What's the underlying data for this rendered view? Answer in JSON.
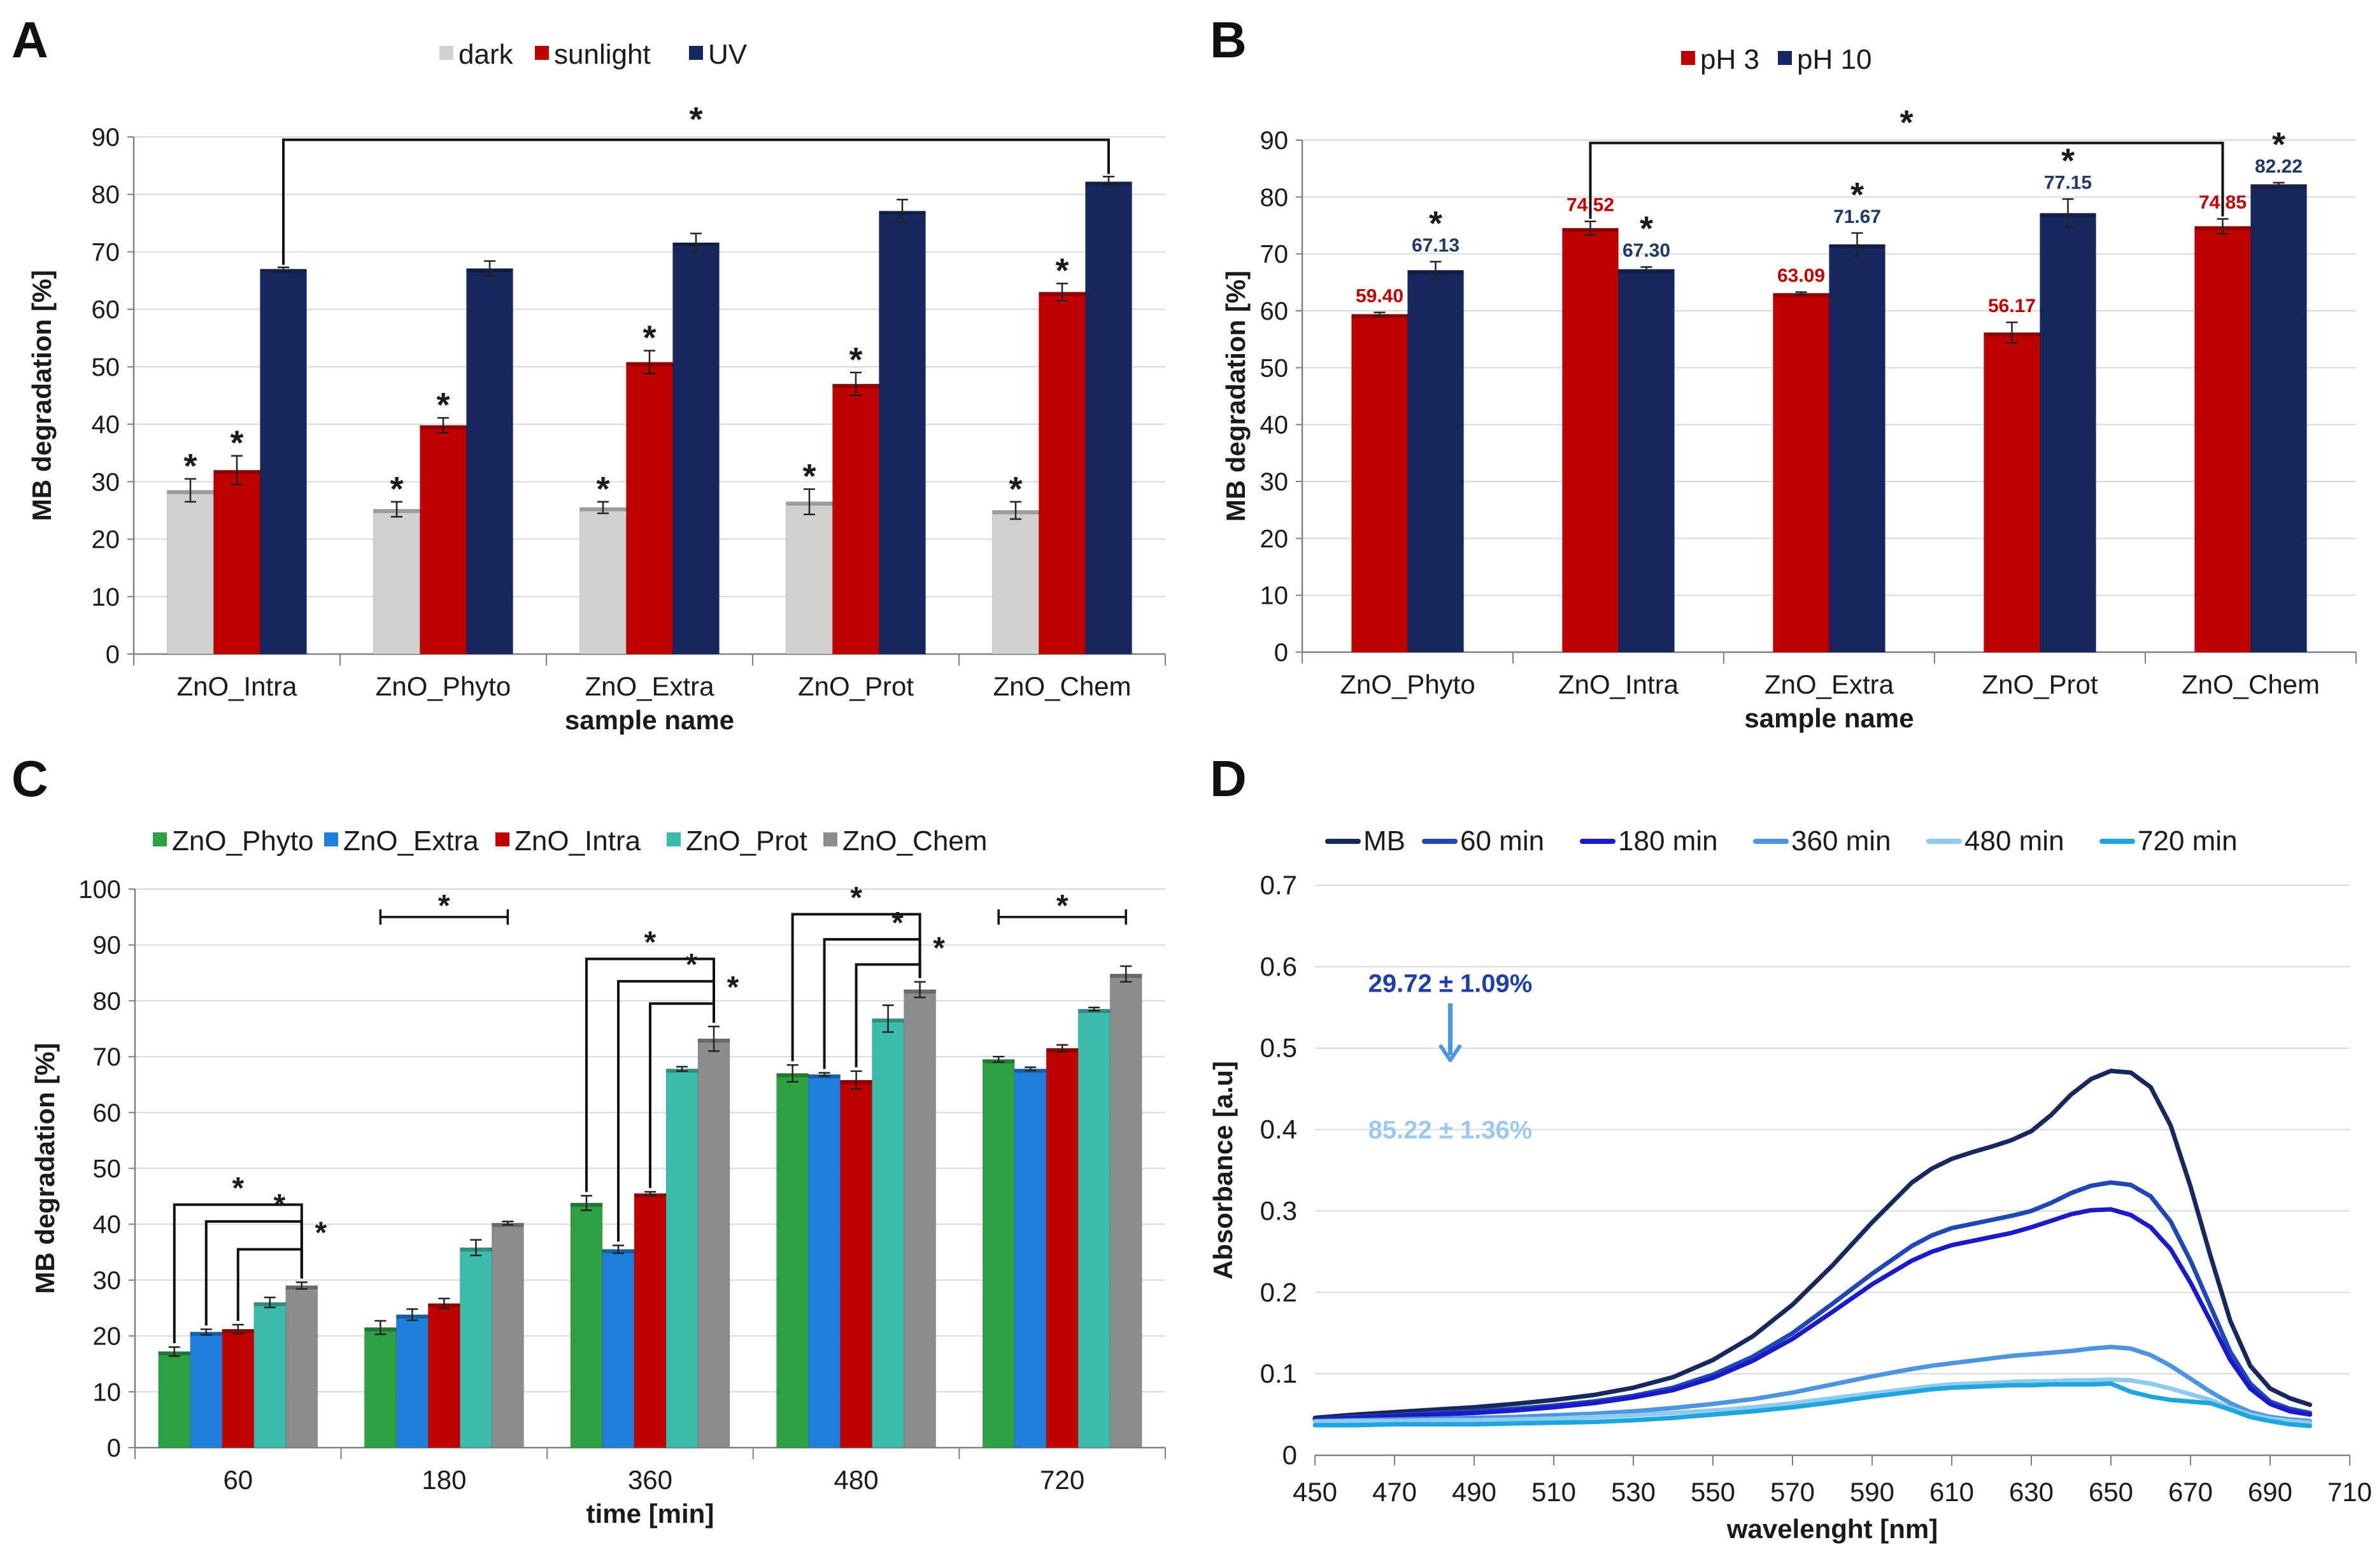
{
  "figure": {
    "colors": {
      "dark": "#d0d0d0",
      "sunlight": "#c00000",
      "UV": "#17285e",
      "pH3": "#c00000",
      "pH10": "#17285e",
      "ZnO_Phyto": "#2ea043",
      "ZnO_Extra": "#1f7fdc",
      "ZnO_Intra": "#c00000",
      "ZnO_Prot": "#3cbcaa",
      "ZnO_Chem": "#8c8c8c",
      "MB": "#17285e",
      "60 min": "#1f48b5",
      "180 min": "#1a1ac8",
      "360 min": "#4d95dd",
      "480 min": "#8ecbee",
      "720 min": "#1ea5dd",
      "label_pH3": "#c00000",
      "label_pH10": "#1f3864",
      "anno_start": "#1f3fa6",
      "anno_end": "#9cc9ee",
      "arrow": "#4d95dd"
    }
  },
  "chart_data": [
    {
      "panel": "A",
      "type": "bar",
      "title": "",
      "xlabel": "sample name",
      "ylabel": "MB degradation [%]",
      "ylim": [
        0,
        90
      ],
      "yticks": [
        "0",
        "10",
        "20",
        "30",
        "40",
        "50",
        "60",
        "70",
        "80",
        "90"
      ],
      "categories": [
        "ZnO_Intra",
        "ZnO_Phyto",
        "ZnO_Extra",
        "ZnO_Prot",
        "ZnO_Chem"
      ],
      "series": [
        {
          "name": "dark",
          "values": [
            28.5,
            25.2,
            25.5,
            26.5,
            25.0
          ],
          "errors": [
            2.0,
            1.3,
            1.0,
            2.2,
            1.5
          ]
        },
        {
          "name": "sunlight",
          "values": [
            32.0,
            39.8,
            50.8,
            47.0,
            63.0
          ],
          "errors": [
            2.5,
            1.3,
            2.0,
            2.0,
            1.5
          ]
        },
        {
          "name": "UV",
          "values": [
            67.0,
            67.1,
            71.6,
            77.1,
            82.2
          ],
          "errors": [
            0.3,
            1.3,
            1.6,
            2.0,
            0.9
          ]
        }
      ],
      "stars": [
        [
          1,
          1,
          0
        ],
        [
          1,
          1,
          0
        ],
        [
          1,
          1,
          0
        ],
        [
          1,
          1,
          0
        ],
        [
          1,
          1,
          0
        ]
      ],
      "star_symbol": "*",
      "bracket": {
        "label": "*",
        "from_category": "ZnO_Intra",
        "to_category": "ZnO_Chem",
        "series": "UV",
        "y": 89.5
      }
    },
    {
      "panel": "B",
      "type": "bar",
      "title": "",
      "xlabel": "sample name",
      "ylabel": "MB degradation [%]",
      "ylim": [
        0,
        90
      ],
      "yticks": [
        "0",
        "10",
        "20",
        "30",
        "40",
        "50",
        "60",
        "70",
        "80",
        "90"
      ],
      "categories": [
        "ZnO_Phyto",
        "ZnO_Intra",
        "ZnO_Extra",
        "ZnO_Prot",
        "ZnO_Chem"
      ],
      "series": [
        {
          "name": "pH 3",
          "values": [
            59.4,
            74.52,
            63.09,
            56.17,
            74.85
          ],
          "errors": [
            0.3,
            1.2,
            0.2,
            1.8,
            1.3
          ],
          "labels": [
            "59.40",
            "74.52",
            "63.09",
            "56.17",
            "74.85"
          ]
        },
        {
          "name": "pH 10",
          "values": [
            67.13,
            67.3,
            71.67,
            77.15,
            82.22
          ],
          "errors": [
            1.5,
            0.4,
            2.0,
            2.5,
            0.3
          ],
          "labels": [
            "67.13",
            "67.30",
            "71.67",
            "77.15",
            "82.22"
          ]
        }
      ],
      "stars": [
        [
          0,
          1
        ],
        [
          0,
          1
        ],
        [
          0,
          1
        ],
        [
          0,
          1
        ],
        [
          0,
          1
        ]
      ],
      "star_symbol": "*",
      "bracket": {
        "label": "*",
        "from_category": "ZnO_Intra",
        "to_category": "ZnO_Chem",
        "series": "pH 3",
        "y": 89.5
      }
    },
    {
      "panel": "C",
      "type": "bar",
      "title": "",
      "xlabel": "time [min]",
      "ylabel": "MB degradation [%]",
      "ylim": [
        0,
        100
      ],
      "yticks": [
        "0",
        "10",
        "20",
        "30",
        "40",
        "50",
        "60",
        "70",
        "80",
        "90",
        "100"
      ],
      "categories": [
        "60",
        "180",
        "360",
        "480",
        "720"
      ],
      "series": [
        {
          "name": "ZnO_Phyto",
          "values": [
            17.2,
            21.5,
            43.8,
            67.0,
            69.5
          ],
          "errors": [
            0.8,
            1.2,
            1.3,
            1.5,
            0.5
          ]
        },
        {
          "name": "ZnO_Extra",
          "values": [
            20.7,
            23.8,
            35.5,
            66.8,
            67.8
          ],
          "errors": [
            0.5,
            1.0,
            0.7,
            0.3,
            0.3
          ]
        },
        {
          "name": "ZnO_Intra",
          "values": [
            21.2,
            25.8,
            45.5,
            65.8,
            71.5
          ],
          "errors": [
            0.8,
            0.9,
            0.3,
            1.6,
            0.6
          ]
        },
        {
          "name": "ZnO_Prot",
          "values": [
            26.0,
            35.8,
            67.8,
            76.8,
            78.5
          ],
          "errors": [
            0.9,
            1.4,
            0.4,
            2.4,
            0.3
          ]
        },
        {
          "name": "ZnO_Chem",
          "values": [
            29.0,
            40.2,
            73.2,
            82.0,
            84.8
          ],
          "errors": [
            0.6,
            0.3,
            2.2,
            1.4,
            1.4
          ]
        }
      ],
      "significance": [
        {
          "label": "*",
          "type": "cascade",
          "category": "60",
          "ys": [
            43.5,
            40.5,
            35.5
          ]
        },
        {
          "label": "*",
          "type": "span",
          "from_category": "180",
          "from_series": "ZnO_Phyto",
          "to_category": "180",
          "to_series": "ZnO_Chem",
          "y": 95
        }
      ],
      "significance_cascades": [
        {
          "label": "*",
          "category": "360",
          "ys": [
            87.5,
            83.5,
            79.5
          ]
        },
        {
          "label": "*",
          "category": "480",
          "ys": [
            95.5,
            91.0,
            86.5
          ]
        }
      ],
      "significance_span_720": {
        "label": "*",
        "category": "720",
        "y": 95
      }
    },
    {
      "panel": "D",
      "type": "line",
      "title": "",
      "xlabel": "wavelenght [nm]",
      "ylabel": "Absorbance [a.u]",
      "xlim": [
        450,
        710
      ],
      "ylim": [
        0,
        0.7
      ],
      "xticks": [
        "450",
        "470",
        "490",
        "510",
        "530",
        "550",
        "570",
        "590",
        "610",
        "630",
        "650",
        "670",
        "690",
        "710"
      ],
      "yticks": [
        "0",
        "0.1",
        "0.2",
        "0.3",
        "0.4",
        "0.5",
        "0.6",
        "0.7"
      ],
      "x": [
        450,
        460,
        470,
        480,
        490,
        500,
        510,
        520,
        530,
        540,
        550,
        560,
        570,
        580,
        590,
        600,
        605,
        610,
        615,
        620,
        625,
        630,
        635,
        640,
        645,
        650,
        655,
        660,
        665,
        670,
        675,
        680,
        685,
        690,
        695,
        700
      ],
      "series": [
        {
          "name": "MB",
          "values": [
            0.046,
            0.05,
            0.053,
            0.056,
            0.059,
            0.063,
            0.068,
            0.074,
            0.083,
            0.096,
            0.117,
            0.146,
            0.185,
            0.233,
            0.286,
            0.335,
            0.352,
            0.364,
            0.372,
            0.379,
            0.387,
            0.398,
            0.418,
            0.443,
            0.462,
            0.472,
            0.47,
            0.452,
            0.405,
            0.33,
            0.245,
            0.165,
            0.11,
            0.082,
            0.07,
            0.062
          ]
        },
        {
          "name": "60 min",
          "values": [
            0.044,
            0.047,
            0.049,
            0.052,
            0.054,
            0.057,
            0.061,
            0.066,
            0.073,
            0.083,
            0.099,
            0.121,
            0.15,
            0.186,
            0.223,
            0.257,
            0.27,
            0.279,
            0.284,
            0.289,
            0.294,
            0.3,
            0.31,
            0.322,
            0.331,
            0.335,
            0.332,
            0.318,
            0.287,
            0.239,
            0.183,
            0.127,
            0.088,
            0.066,
            0.057,
            0.052
          ]
        },
        {
          "name": "180 min",
          "values": [
            0.044,
            0.046,
            0.048,
            0.05,
            0.052,
            0.055,
            0.059,
            0.064,
            0.071,
            0.08,
            0.095,
            0.116,
            0.143,
            0.176,
            0.21,
            0.239,
            0.25,
            0.258,
            0.263,
            0.268,
            0.273,
            0.28,
            0.288,
            0.296,
            0.301,
            0.302,
            0.295,
            0.28,
            0.253,
            0.212,
            0.165,
            0.117,
            0.082,
            0.063,
            0.054,
            0.05
          ]
        },
        {
          "name": "360 min",
          "values": [
            0.042,
            0.043,
            0.044,
            0.045,
            0.046,
            0.047,
            0.049,
            0.051,
            0.054,
            0.058,
            0.063,
            0.069,
            0.077,
            0.087,
            0.097,
            0.106,
            0.11,
            0.113,
            0.116,
            0.119,
            0.122,
            0.124,
            0.126,
            0.128,
            0.131,
            0.133,
            0.131,
            0.123,
            0.11,
            0.094,
            0.078,
            0.064,
            0.053,
            0.047,
            0.044,
            0.042
          ]
        },
        {
          "name": "480 min",
          "values": [
            0.041,
            0.042,
            0.042,
            0.043,
            0.043,
            0.044,
            0.045,
            0.047,
            0.049,
            0.052,
            0.055,
            0.059,
            0.064,
            0.07,
            0.076,
            0.082,
            0.085,
            0.087,
            0.088,
            0.089,
            0.09,
            0.091,
            0.091,
            0.092,
            0.092,
            0.093,
            0.092,
            0.088,
            0.082,
            0.075,
            0.068,
            0.058,
            0.05,
            0.045,
            0.042,
            0.04
          ]
        },
        {
          "name": "720 min",
          "values": [
            0.037,
            0.037,
            0.038,
            0.038,
            0.038,
            0.039,
            0.04,
            0.041,
            0.043,
            0.046,
            0.05,
            0.054,
            0.059,
            0.065,
            0.072,
            0.078,
            0.081,
            0.083,
            0.084,
            0.085,
            0.086,
            0.086,
            0.087,
            0.087,
            0.087,
            0.088,
            0.078,
            0.072,
            0.068,
            0.066,
            0.064,
            0.056,
            0.047,
            0.042,
            0.038,
            0.036
          ]
        }
      ],
      "annotations": [
        {
          "text": "29.72 ± 1.09%",
          "x": 484,
          "y": 0.58,
          "role": "start"
        },
        {
          "text": "85.22 ± 1.36%",
          "x": 484,
          "y": 0.4,
          "role": "end"
        }
      ],
      "arrow": {
        "x": 484,
        "y_from": 0.555,
        "y_to": 0.485
      }
    }
  ]
}
